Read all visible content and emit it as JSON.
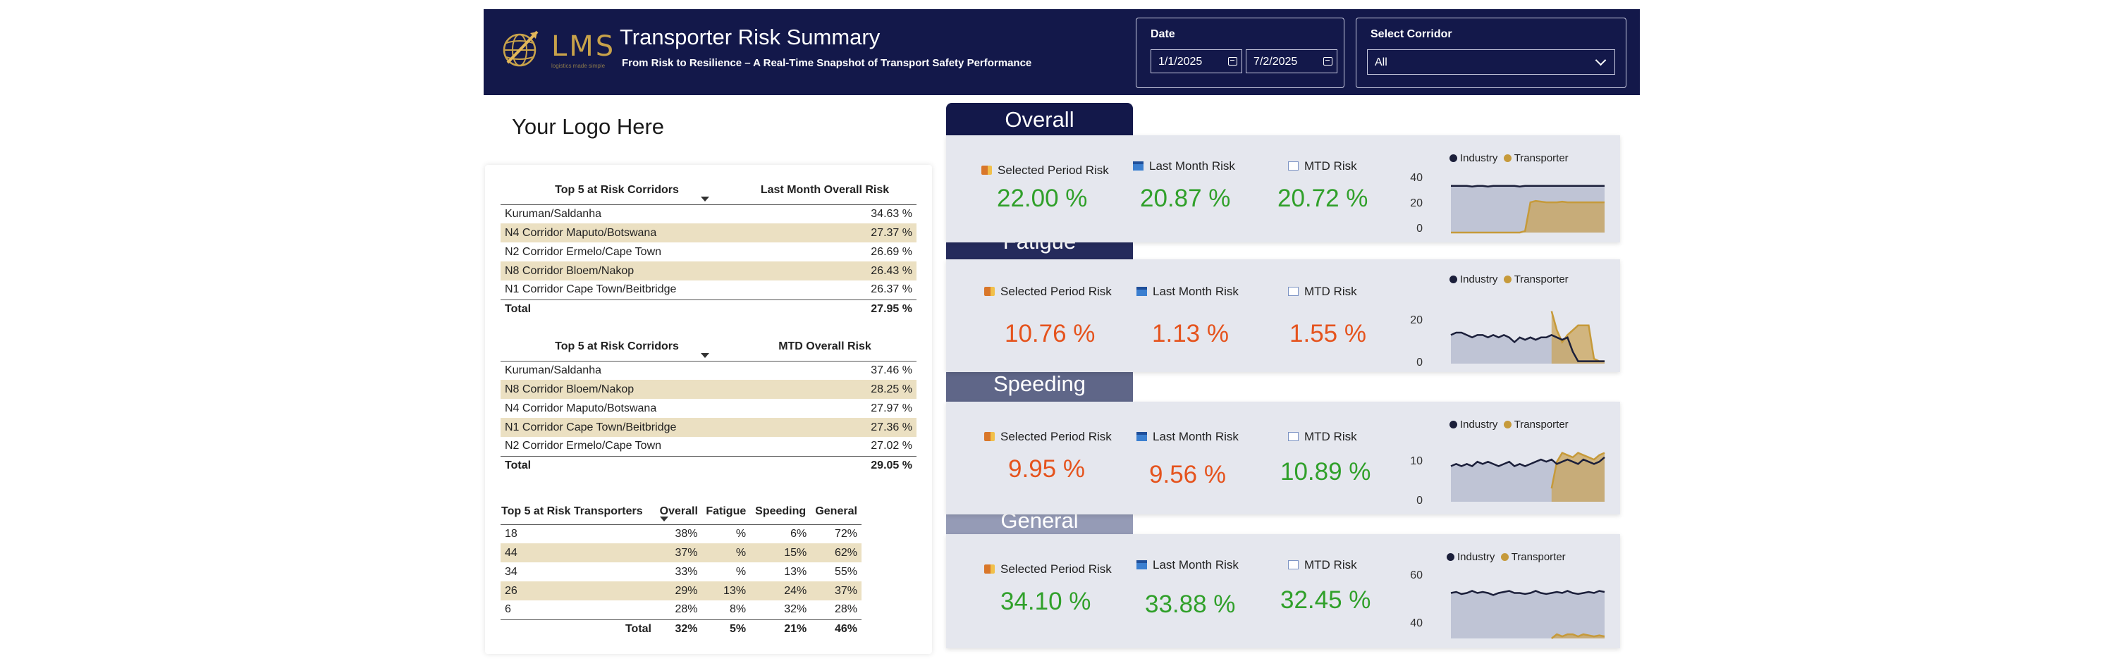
{
  "header": {
    "logo_text": "LMS",
    "logo_tagline": "logistics made simple",
    "title": "Transporter Risk Summary",
    "subtitle": "From Risk to Resilience – A Real-Time Snapshot of Transport Safety Performance",
    "date_label": "Date",
    "date_from": "1/1/2025",
    "date_to": "7/2/2025",
    "corridor_label": "Select Corridor",
    "corridor_value": "All"
  },
  "logo_placeholder": "Your Logo Here",
  "corridors_last_month": {
    "col1": "Top 5 at Risk Corridors",
    "col2": "Last Month Overall Risk",
    "rows": [
      {
        "name": "Kuruman/Saldanha",
        "value": "34.63 %"
      },
      {
        "name": "N4 Corridor Maputo/Botswana",
        "value": "27.37 %"
      },
      {
        "name": "N2 Corridor Ermelo/Cape Town",
        "value": "26.69 %"
      },
      {
        "name": "N8 Corridor Bloem/Nakop",
        "value": "26.43 %"
      },
      {
        "name": "N1 Corridor Cape Town/Beitbridge",
        "value": "26.37 %"
      }
    ],
    "total_label": "Total",
    "total_value": "27.95 %"
  },
  "corridors_mtd": {
    "col1": "Top 5 at Risk Corridors",
    "col2": "MTD Overall Risk",
    "rows": [
      {
        "name": "Kuruman/Saldanha",
        "value": "37.46 %"
      },
      {
        "name": "N8 Corridor Bloem/Nakop",
        "value": "28.25 %"
      },
      {
        "name": "N4 Corridor Maputo/Botswana",
        "value": "27.97 %"
      },
      {
        "name": "N1 Corridor Cape Town/Beitbridge",
        "value": "27.36 %"
      },
      {
        "name": "N2 Corridor Ermelo/Cape Town",
        "value": "27.02 %"
      }
    ],
    "total_label": "Total",
    "total_value": "29.05 %"
  },
  "transporters": {
    "headers": [
      "Top 5 at Risk Transporters",
      "Overall",
      "Fatigue",
      "Speeding",
      "General"
    ],
    "rows": [
      [
        "18",
        "38%",
        "%",
        "6%",
        "72%"
      ],
      [
        "44",
        "37%",
        "%",
        "15%",
        "62%"
      ],
      [
        "34",
        "33%",
        "%",
        "13%",
        "55%"
      ],
      [
        "26",
        "29%",
        "13%",
        "24%",
        "37%"
      ],
      [
        "6",
        "28%",
        "8%",
        "32%",
        "28%"
      ]
    ],
    "total": [
      "Total",
      "32%",
      "5%",
      "21%",
      "46%"
    ]
  },
  "kpi_labels": {
    "selected": "Selected Period Risk",
    "last_month": "Last Month Risk",
    "mtd": "MTD Risk"
  },
  "legend": {
    "industry": "Industry",
    "transporter": "Transporter"
  },
  "colors": {
    "header_bg": "#13184a",
    "overall_tab": "#13184a",
    "fatigue_tab": "#252b5c",
    "speeding_tab": "#5f6688",
    "general_tab": "#959bb6",
    "green": "#30a02a",
    "orange": "#e5531d",
    "industry_line": "#1b1f3a",
    "transporter_line": "#c69a3a",
    "row_highlight": "#ebe0c2"
  },
  "sections": [
    {
      "title": "Overall",
      "selected": "22.00 %",
      "last_month": "20.87 %",
      "mtd": "20.72 %",
      "value_color": "green",
      "y_ticks": [
        "40",
        "20",
        "0"
      ]
    },
    {
      "title": "Fatigue",
      "selected": "10.76 %",
      "last_month": "1.13 %",
      "mtd": "1.55 %",
      "value_color": "orange",
      "y_ticks": [
        "20",
        "0"
      ]
    },
    {
      "title": "Speeding",
      "selected": "9.95 %",
      "last_month": "9.56 %",
      "mtd": "10.89 %",
      "value_color": "mixed",
      "y_ticks": [
        "10",
        "0"
      ]
    },
    {
      "title": "General",
      "selected": "34.10 %",
      "last_month": "33.88 %",
      "mtd": "32.45 %",
      "value_color": "green",
      "y_ticks": [
        "60",
        "40"
      ]
    }
  ],
  "sparklines": [
    {
      "ymin": 0,
      "ymax": 40,
      "industry": [
        34,
        34,
        34,
        34,
        33.5,
        34,
        34,
        33.5,
        34,
        34,
        34,
        34,
        34,
        33.5,
        34,
        34,
        34,
        34,
        34,
        34,
        34,
        34,
        34,
        34,
        34,
        34,
        34,
        34,
        34,
        34
      ],
      "transporter": [
        0,
        0,
        0,
        0,
        0,
        0,
        0,
        0,
        0,
        0,
        0,
        0,
        0,
        0,
        1,
        22,
        23,
        22.5,
        22,
        22,
        22,
        22.5,
        22,
        22,
        22,
        22,
        22,
        22,
        22,
        22
      ]
    },
    {
      "ymin": 0,
      "ymax": 26,
      "industry": [
        12,
        13,
        13,
        12,
        11,
        12,
        12,
        11,
        12,
        11,
        12,
        11,
        9,
        11,
        10,
        11,
        10,
        11,
        11,
        12,
        11,
        10,
        11,
        5,
        1,
        1,
        1,
        1,
        1,
        1
      ],
      "transporter": [
        null,
        null,
        null,
        null,
        null,
        null,
        null,
        null,
        null,
        null,
        null,
        null,
        null,
        null,
        null,
        null,
        null,
        null,
        null,
        22,
        14,
        9,
        12,
        14,
        16,
        16,
        16,
        2,
        1,
        1
      ]
    },
    {
      "ymin": 0,
      "ymax": 13,
      "industry": [
        8,
        8.5,
        8,
        8.5,
        8,
        9,
        8.5,
        9,
        8.5,
        8,
        8.5,
        9,
        8,
        8.5,
        8,
        8.5,
        9,
        9.5,
        9,
        9.5,
        8.5,
        9,
        9.5,
        9,
        8.5,
        9.5,
        9,
        8.5,
        9,
        10
      ],
      "transporter": [
        null,
        null,
        null,
        null,
        null,
        null,
        null,
        null,
        null,
        null,
        null,
        null,
        null,
        null,
        null,
        null,
        null,
        null,
        null,
        3,
        9,
        11,
        10.5,
        10,
        11,
        10.5,
        10,
        9.5,
        10.5,
        11
      ]
    },
    {
      "ymin": 34,
      "ymax": 64,
      "industry": [
        56,
        56.5,
        55.5,
        56,
        57,
        56,
        56.5,
        56,
        55,
        56,
        56.5,
        57,
        56,
        56,
        55.5,
        56,
        57,
        56,
        55.5,
        56,
        56.5,
        56,
        57,
        56,
        55.5,
        56,
        56.5,
        56,
        57,
        56.5
      ],
      "transporter": [
        null,
        null,
        null,
        null,
        null,
        null,
        null,
        null,
        null,
        null,
        null,
        null,
        null,
        null,
        null,
        null,
        null,
        null,
        null,
        34,
        36,
        35,
        36,
        36,
        35,
        36,
        35.5,
        35,
        35.5,
        35
      ]
    }
  ]
}
